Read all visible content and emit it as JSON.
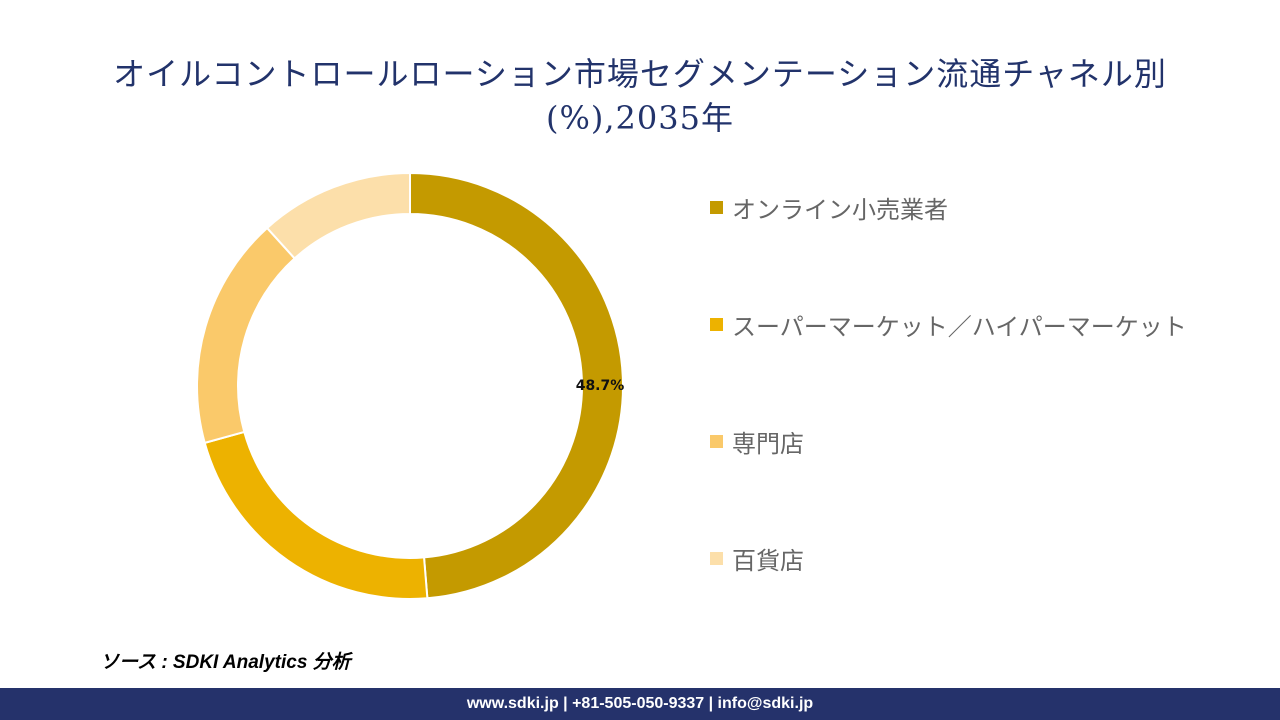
{
  "chart_data": {
    "type": "pie",
    "donut": true,
    "title_line1": "オイルコントロールローション市場セグメンテーション流通チャネル別",
    "title_line2": "(%),2035年",
    "categories": [
      "オンライン小売業者",
      "スーパーマーケット／ハイパーマーケット",
      "専門店",
      "百貨店"
    ],
    "values": [
      48.7,
      22.0,
      17.6,
      11.7
    ],
    "data_labels": [
      "48.7%",
      "",
      "",
      ""
    ],
    "colors": [
      "#C49A00",
      "#EDB200",
      "#FAC96A",
      "#FCDFAA"
    ],
    "legend_position": "right"
  },
  "source": "ソース : SDKI Analytics 分析",
  "footer": "www.sdki.jp | +81-505-050-9337 | info@sdki.jp"
}
